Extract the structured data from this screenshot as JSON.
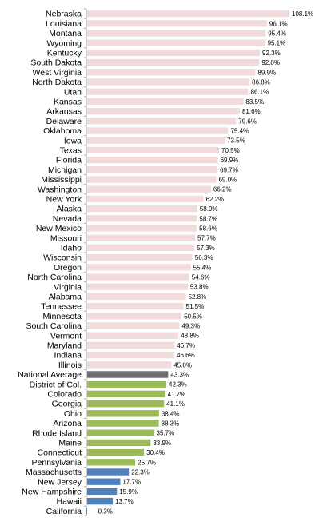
{
  "chart_data": {
    "type": "bar",
    "orientation": "horizontal",
    "title": "",
    "xlabel": "",
    "ylabel": "",
    "xlim": [
      0,
      108.1
    ],
    "grid": false,
    "legend": "none",
    "categories": [
      "Nebraska",
      "Louisiana",
      "Montana",
      "Wyoming",
      "Kentucky",
      "South Dakota",
      "West Virginia",
      "North Dakota",
      "Utah",
      "Kansas",
      "Arkansas",
      "Delaware",
      "Oklahoma",
      "Iowa",
      "Texas",
      "Florida",
      "Michigan",
      "Mississippi",
      "Washington",
      "New York",
      "Alaska",
      "Nevada",
      "New Mexico",
      "Missouri",
      "Idaho",
      "Wisconsin",
      "Oregon",
      "North Carolina",
      "Virginia",
      "Alabama",
      "Tennessee",
      "Minnesota",
      "South Carolina",
      "Vermont",
      "Maryland",
      "Indiana",
      "Illinois",
      "National Average",
      "District of Col.",
      "Colorado",
      "Georgia",
      "Ohio",
      "Arizona",
      "Rhode Island",
      "Maine",
      "Connecticut",
      "Pennsylvania",
      "Massachusetts",
      "New Jersey",
      "New Hampshire",
      "Hawaii",
      "California"
    ],
    "values": [
      108.1,
      96.1,
      95.4,
      95.1,
      92.3,
      92.0,
      89.9,
      86.8,
      86.1,
      83.5,
      81.6,
      79.6,
      75.4,
      73.5,
      70.5,
      69.9,
      69.7,
      69.0,
      66.2,
      62.2,
      58.9,
      58.7,
      58.6,
      57.7,
      57.3,
      56.3,
      55.4,
      54.6,
      53.8,
      52.8,
      51.5,
      50.5,
      49.3,
      48.8,
      46.7,
      46.6,
      45.0,
      43.3,
      42.3,
      41.7,
      41.1,
      38.4,
      38.3,
      35.7,
      33.9,
      30.4,
      25.7,
      22.3,
      17.7,
      15.9,
      13.7,
      -0.3
    ],
    "value_labels": [
      "108.1%",
      "96.1%",
      "95.4%",
      "95.1%",
      "92.3%",
      "92.0%",
      "89.9%",
      "86.8%",
      "86.1%",
      "83.5%",
      "81.6%",
      "79.6%",
      "75.4%",
      "73.5%",
      "70.5%",
      "69.9%",
      "69.7%",
      "69.0%",
      "66.2%",
      "62.2%",
      "58.9%",
      "58.7%",
      "58.6%",
      "57.7%",
      "57.3%",
      "56.3%",
      "55.4%",
      "54.6%",
      "53.8%",
      "52.8%",
      "51.5%",
      "50.5%",
      "49.3%",
      "48.8%",
      "46.7%",
      "46.6%",
      "45.0%",
      "43.3%",
      "42.3%",
      "41.7%",
      "41.1%",
      "38.4%",
      "38.3%",
      "35.7%",
      "33.9%",
      "30.4%",
      "25.7%",
      "22.3%",
      "17.7%",
      "15.9%",
      "13.7%",
      "-0.3%"
    ],
    "bar_colors": [
      "#f2dcdb",
      "#f2dcdb",
      "#f2dcdb",
      "#f2dcdb",
      "#f2dcdb",
      "#f2dcdb",
      "#f2dcdb",
      "#f2dcdb",
      "#f2dcdb",
      "#f2dcdb",
      "#f2dcdb",
      "#f2dcdb",
      "#f2dcdb",
      "#f2dcdb",
      "#f2dcdb",
      "#f2dcdb",
      "#f2dcdb",
      "#f2dcdb",
      "#f2dcdb",
      "#f2dcdb",
      "#f2dcdb",
      "#f2dcdb",
      "#f2dcdb",
      "#f2dcdb",
      "#f2dcdb",
      "#f2dcdb",
      "#f2dcdb",
      "#f2dcdb",
      "#f2dcdb",
      "#f2dcdb",
      "#f2dcdb",
      "#f2dcdb",
      "#f2dcdb",
      "#f2dcdb",
      "#f2dcdb",
      "#f2dcdb",
      "#f2dcdb",
      "#6d6d71",
      "#9bbb59",
      "#9bbb59",
      "#9bbb59",
      "#9bbb59",
      "#9bbb59",
      "#9bbb59",
      "#9bbb59",
      "#9bbb59",
      "#9bbb59",
      "#4f81bd",
      "#4f81bd",
      "#4f81bd",
      "#4f81bd",
      "#4f81bd"
    ],
    "axis_color": "#a6a6a6"
  }
}
